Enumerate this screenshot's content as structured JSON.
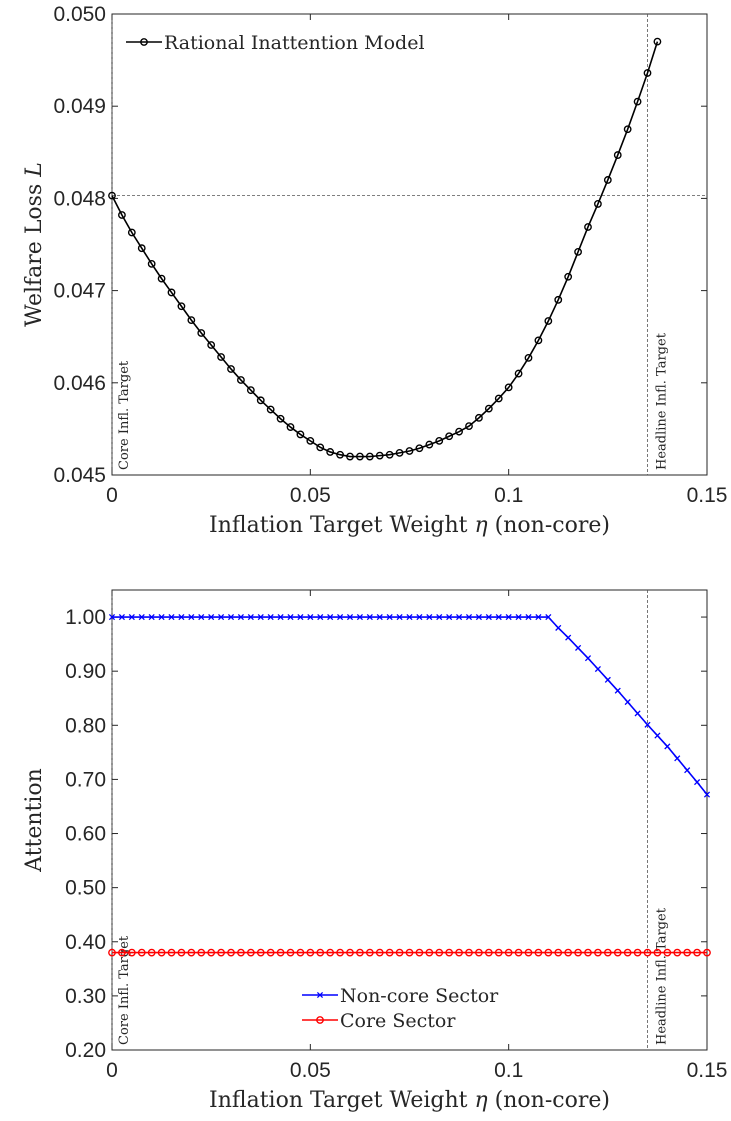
{
  "chart_data": [
    {
      "type": "line",
      "xlabel": "Inflation Target Weight η (non-core)",
      "ylabel": "Welfare Loss L",
      "xlim": [
        0,
        0.15
      ],
      "ylim": [
        0.045,
        0.05
      ],
      "xticks": [
        "0",
        "0.05",
        "0.1",
        "0.15"
      ],
      "yticks": [
        "0.045",
        "0.046",
        "0.047",
        "0.048",
        "0.049",
        "0.050"
      ],
      "grid": false,
      "legend_position": "top-left",
      "reference_lines": {
        "horizontal_y": 0.04803,
        "vertical_x": [
          0,
          0.135
        ]
      },
      "annotations": [
        "Core Infl. Target",
        "Headline Infl. Target"
      ],
      "series": [
        {
          "name": "Rational Inattention Model",
          "color": "#000000",
          "marker": "circle",
          "x_step": 0.0025,
          "values": [
            0.04803,
            0.04782,
            0.04763,
            0.04746,
            0.04729,
            0.04713,
            0.04698,
            0.04683,
            0.04668,
            0.04654,
            0.04641,
            0.04628,
            0.04615,
            0.04603,
            0.04592,
            0.04581,
            0.04571,
            0.04561,
            0.04552,
            0.04544,
            0.04537,
            0.0453,
            0.04525,
            0.04522,
            0.0452,
            0.0452,
            0.0452,
            0.04521,
            0.04522,
            0.04524,
            0.04526,
            0.04529,
            0.04533,
            0.04537,
            0.04542,
            0.04547,
            0.04553,
            0.04562,
            0.04572,
            0.04583,
            0.04595,
            0.0461,
            0.04627,
            0.04646,
            0.04667,
            0.0469,
            0.04715,
            0.04742,
            0.04769,
            0.04794,
            0.0482,
            0.04847,
            0.04875,
            0.04905,
            0.04936,
            0.0497
          ]
        }
      ]
    },
    {
      "type": "line",
      "xlabel": "Inflation Target Weight η (non-core)",
      "ylabel": "Attention",
      "xlim": [
        0,
        0.15
      ],
      "ylim": [
        0.2,
        1.05
      ],
      "xticks": [
        "0",
        "0.05",
        "0.1",
        "0.15"
      ],
      "yticks": [
        "0.20",
        "0.30",
        "0.40",
        "0.50",
        "0.60",
        "0.70",
        "0.80",
        "0.90",
        "1.00"
      ],
      "grid": false,
      "legend_position": "bottom-center",
      "reference_lines": {
        "vertical_x": [
          0,
          0.135
        ]
      },
      "annotations": [
        "Core Infl. Target",
        "Headline Infl. Target"
      ],
      "series": [
        {
          "name": "Non-core Sector",
          "color": "#0000ff",
          "marker": "x",
          "x_step": 0.0025,
          "values": [
            1,
            1,
            1,
            1,
            1,
            1,
            1,
            1,
            1,
            1,
            1,
            1,
            1,
            1,
            1,
            1,
            1,
            1,
            1,
            1,
            1,
            1,
            1,
            1,
            1,
            1,
            1,
            1,
            1,
            1,
            1,
            1,
            1,
            1,
            1,
            1,
            1,
            1,
            1,
            1,
            1,
            1,
            1,
            1,
            1,
            0.98,
            0.962,
            0.943,
            0.924,
            0.904,
            0.884,
            0.864,
            0.843,
            0.822,
            0.801,
            0.781,
            0.761,
            0.739,
            0.717,
            0.695,
            0.672
          ]
        },
        {
          "name": "Core Sector",
          "color": "#ff0000",
          "marker": "circle",
          "x_step": 0.0025,
          "values": [
            0.38,
            0.38,
            0.38,
            0.38,
            0.38,
            0.38,
            0.38,
            0.38,
            0.38,
            0.38,
            0.38,
            0.38,
            0.38,
            0.38,
            0.38,
            0.38,
            0.38,
            0.38,
            0.38,
            0.38,
            0.38,
            0.38,
            0.38,
            0.38,
            0.38,
            0.38,
            0.38,
            0.38,
            0.38,
            0.38,
            0.38,
            0.38,
            0.38,
            0.38,
            0.38,
            0.38,
            0.38,
            0.38,
            0.38,
            0.38,
            0.38,
            0.38,
            0.38,
            0.38,
            0.38,
            0.38,
            0.38,
            0.38,
            0.38,
            0.38,
            0.38,
            0.38,
            0.38,
            0.38,
            0.38,
            0.38,
            0.38,
            0.38,
            0.38,
            0.38,
            0.38
          ]
        }
      ]
    }
  ]
}
